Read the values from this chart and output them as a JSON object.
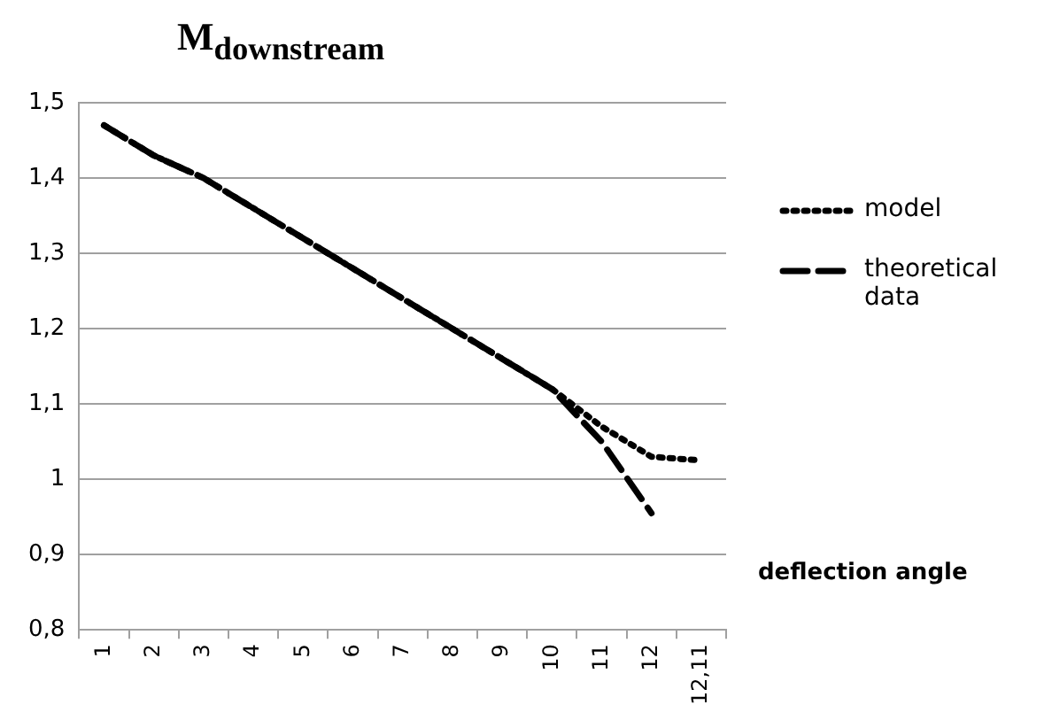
{
  "chart_data": {
    "type": "line",
    "title": "M$_{downstream}$",
    "xlabel": "deflection angle",
    "categories": [
      "1",
      "2",
      "3",
      "4",
      "5",
      "6",
      "7",
      "8",
      "9",
      "10",
      "11",
      "12",
      "12,11"
    ],
    "series": [
      {
        "name": "model",
        "color": "#000000",
        "line_style": "dotted",
        "values": [
          1.47,
          1.43,
          1.4,
          1.36,
          1.32,
          1.28,
          1.24,
          1.2,
          1.16,
          1.12,
          1.07,
          1.03,
          1.025
        ]
      },
      {
        "name": "theoretical data",
        "color": "#000000",
        "line_style": "dashed",
        "values": [
          1.47,
          1.43,
          1.4,
          1.36,
          1.32,
          1.28,
          1.24,
          1.2,
          1.16,
          1.12,
          1.05,
          0.955,
          null
        ]
      }
    ],
    "ylim": [
      0.8,
      1.5
    ],
    "yticks": [
      {
        "value": 0.8,
        "label": "0,8"
      },
      {
        "value": 0.9,
        "label": "0,9"
      },
      1,
      {
        "value": 1.1,
        "label": "1,1"
      },
      {
        "value": 1.2,
        "label": "1,2"
      },
      {
        "value": 1.3,
        "label": "1,3"
      },
      {
        "value": 1.4,
        "label": "1,4"
      },
      {
        "value": 1.5,
        "label": "1,5"
      }
    ],
    "grid": "y",
    "legend": "right",
    "marker": "none"
  }
}
